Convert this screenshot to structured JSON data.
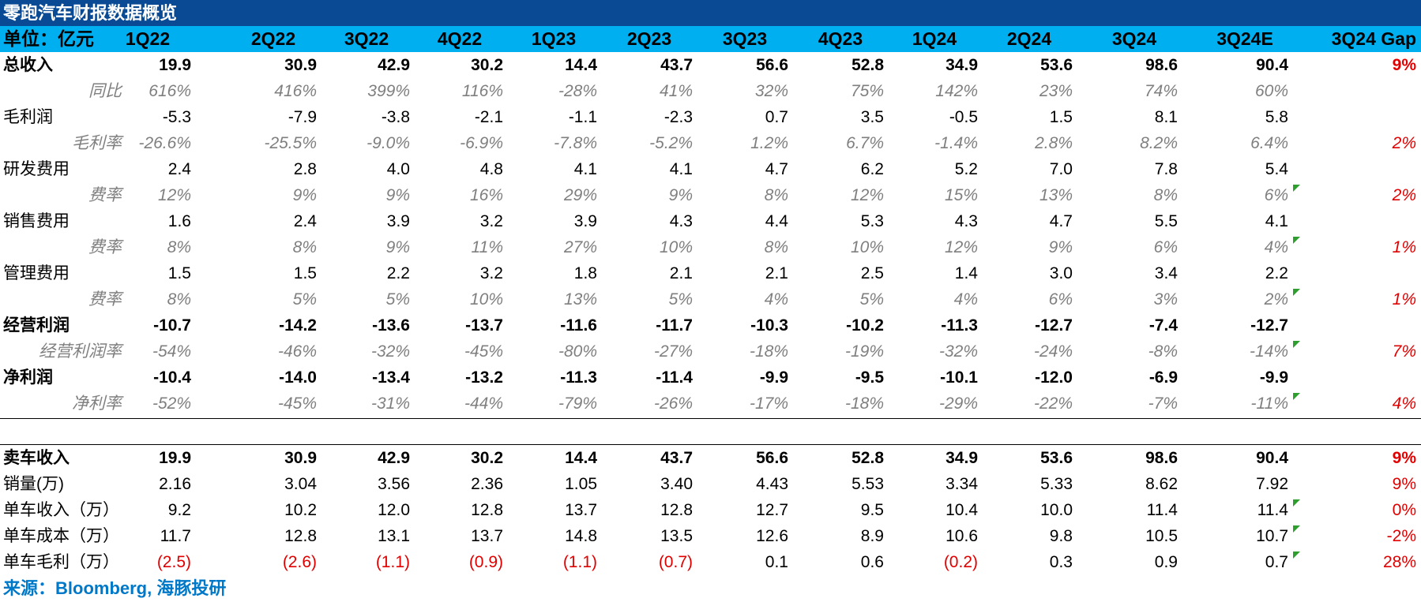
{
  "title": "零跑汽车财报数据概览",
  "header": {
    "unit_label": "单位：亿元",
    "columns": [
      "1Q22",
      "2Q22",
      "3Q22",
      "4Q22",
      "1Q23",
      "2Q23",
      "3Q23",
      "4Q23",
      "1Q24",
      "2Q24",
      "3Q24",
      "3Q24E"
    ],
    "gap_label": "3Q24 Gap"
  },
  "rows": [
    {
      "label": "总收入",
      "style": "bold",
      "values": [
        "19.9",
        "30.9",
        "42.9",
        "30.2",
        "14.4",
        "43.7",
        "56.6",
        "52.8",
        "34.9",
        "53.6",
        "98.6",
        "90.4"
      ],
      "gap": "9%",
      "gap_style": "red"
    },
    {
      "label": "同比",
      "style": "italic",
      "values": [
        "616%",
        "416%",
        "399%",
        "116%",
        "-28%",
        "41%",
        "32%",
        "75%",
        "142%",
        "23%",
        "74%",
        "60%"
      ],
      "gap": ""
    },
    {
      "label": "毛利润",
      "style": "normal",
      "values": [
        "-5.3",
        "-7.9",
        "-3.8",
        "-2.1",
        "-1.1",
        "-2.3",
        "0.7",
        "3.5",
        "-0.5",
        "1.5",
        "8.1",
        "5.8"
      ],
      "gap": ""
    },
    {
      "label": "毛利率",
      "style": "italic",
      "values": [
        "-26.6%",
        "-25.5%",
        "-9.0%",
        "-6.9%",
        "-7.8%",
        "-5.2%",
        "1.2%",
        "6.7%",
        "-1.4%",
        "2.8%",
        "8.2%",
        "6.4%"
      ],
      "gap": "2%",
      "gap_style": "red-italic"
    },
    {
      "label": "研发费用",
      "style": "normal",
      "values": [
        "2.4",
        "2.8",
        "4.0",
        "4.8",
        "4.1",
        "4.1",
        "4.7",
        "6.2",
        "5.2",
        "7.0",
        "7.8",
        "5.4"
      ],
      "gap": ""
    },
    {
      "label": "费率",
      "style": "italic",
      "values": [
        "12%",
        "9%",
        "9%",
        "16%",
        "29%",
        "9%",
        "8%",
        "12%",
        "15%",
        "13%",
        "8%",
        "6%"
      ],
      "gap": "2%",
      "gap_style": "red-italic",
      "marker": true
    },
    {
      "label": "销售费用",
      "style": "normal",
      "values": [
        "1.6",
        "2.4",
        "3.9",
        "3.2",
        "3.9",
        "4.3",
        "4.4",
        "5.3",
        "4.3",
        "4.7",
        "5.5",
        "4.1"
      ],
      "gap": ""
    },
    {
      "label": "费率",
      "style": "italic",
      "values": [
        "8%",
        "8%",
        "9%",
        "11%",
        "27%",
        "10%",
        "8%",
        "10%",
        "12%",
        "9%",
        "6%",
        "4%"
      ],
      "gap": "1%",
      "gap_style": "red-italic",
      "marker": true
    },
    {
      "label": "管理费用",
      "style": "normal",
      "values": [
        "1.5",
        "1.5",
        "2.2",
        "3.2",
        "1.8",
        "2.1",
        "2.1",
        "2.5",
        "1.4",
        "3.0",
        "3.4",
        "2.2"
      ],
      "gap": ""
    },
    {
      "label": "费率",
      "style": "italic",
      "values": [
        "8%",
        "5%",
        "5%",
        "10%",
        "13%",
        "5%",
        "4%",
        "5%",
        "4%",
        "6%",
        "3%",
        "2%"
      ],
      "gap": "1%",
      "gap_style": "red-italic",
      "marker": true
    },
    {
      "label": "经营利润",
      "style": "bold",
      "values": [
        "-10.7",
        "-14.2",
        "-13.6",
        "-13.7",
        "-11.6",
        "-11.7",
        "-10.3",
        "-10.2",
        "-11.3",
        "-12.7",
        "-7.4",
        "-12.7"
      ],
      "gap": ""
    },
    {
      "label": "经营利润率",
      "style": "italic",
      "values": [
        "-54%",
        "-46%",
        "-32%",
        "-45%",
        "-80%",
        "-27%",
        "-18%",
        "-19%",
        "-32%",
        "-24%",
        "-8%",
        "-14%"
      ],
      "gap": "7%",
      "gap_style": "red-italic",
      "marker": true
    },
    {
      "label": "净利润",
      "style": "bold",
      "values": [
        "-10.4",
        "-14.0",
        "-13.4",
        "-13.2",
        "-11.3",
        "-11.4",
        "-9.9",
        "-9.5",
        "-10.1",
        "-12.0",
        "-6.9",
        "-9.9"
      ],
      "gap": ""
    },
    {
      "label": "净利率",
      "style": "italic",
      "values": [
        "-52%",
        "-45%",
        "-31%",
        "-44%",
        "-79%",
        "-26%",
        "-17%",
        "-18%",
        "-29%",
        "-22%",
        "-7%",
        "-11%"
      ],
      "gap": "4%",
      "gap_style": "red-italic",
      "marker": true
    }
  ],
  "rows2": [
    {
      "label": "卖车收入",
      "style": "bold",
      "values": [
        "19.9",
        "30.9",
        "42.9",
        "30.2",
        "14.4",
        "43.7",
        "56.6",
        "52.8",
        "34.9",
        "53.6",
        "98.6",
        "90.4"
      ],
      "gap": "9%",
      "gap_style": "red"
    },
    {
      "label": "销量(万)",
      "style": "normal",
      "values": [
        "2.16",
        "3.04",
        "3.56",
        "2.36",
        "1.05",
        "3.40",
        "4.43",
        "5.53",
        "3.34",
        "5.33",
        "8.62",
        "7.92"
      ],
      "gap": "9%",
      "gap_style": "red"
    },
    {
      "label": "单车收入（万）",
      "style": "normal",
      "values": [
        "9.2",
        "10.2",
        "12.0",
        "12.8",
        "13.7",
        "12.8",
        "12.7",
        "9.5",
        "10.4",
        "10.0",
        "11.4",
        "11.4"
      ],
      "gap": "0%",
      "gap_style": "red",
      "marker": true
    },
    {
      "label": "单车成本（万）",
      "style": "normal",
      "values": [
        "11.7",
        "12.8",
        "13.1",
        "13.7",
        "14.8",
        "13.5",
        "12.6",
        "8.9",
        "10.6",
        "9.8",
        "10.5",
        "10.7"
      ],
      "gap": "-2%",
      "gap_style": "red",
      "marker": true
    },
    {
      "label": "单车毛利（万）",
      "style": "normal",
      "values": [
        "(2.5)",
        "(2.6)",
        "(1.1)",
        "(0.9)",
        "(1.1)",
        "(0.7)",
        "0.1",
        "0.6",
        "(0.2)",
        "0.3",
        "0.9",
        "0.7"
      ],
      "gap": "28%",
      "gap_style": "red",
      "marker": true,
      "red_values": [
        0,
        1,
        2,
        3,
        4,
        5,
        8
      ]
    }
  ],
  "footer": "来源：Bloomberg, 海豚投研"
}
